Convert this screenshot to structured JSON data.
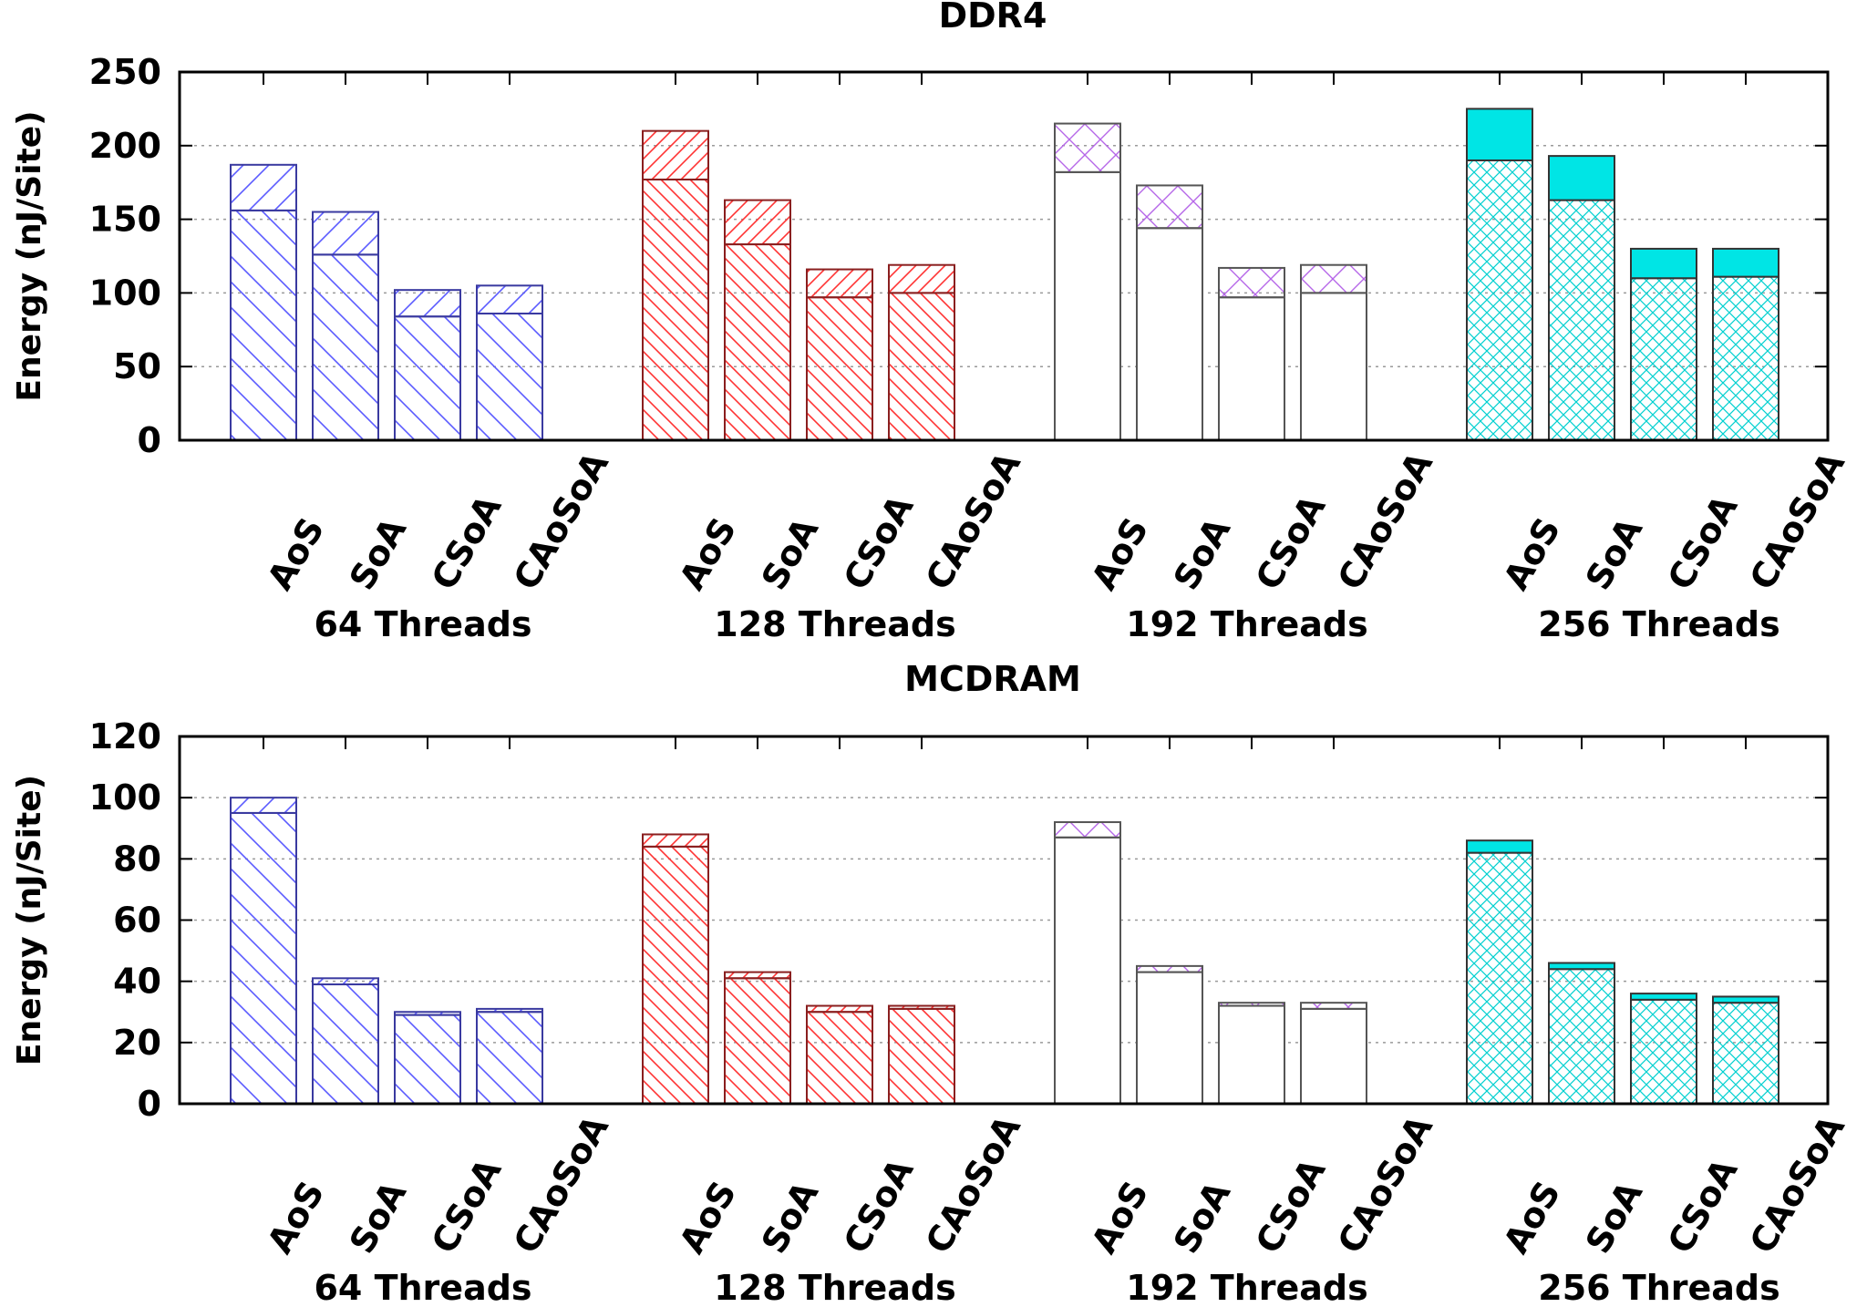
{
  "chart_data": [
    {
      "type": "bar",
      "stacked": true,
      "title": "DDR4",
      "ylabel": "Energy (nJ/Site)",
      "xlabel": "",
      "ylim": [
        0,
        250
      ],
      "yticks": [
        0,
        50,
        100,
        150,
        200,
        250
      ],
      "grid": true,
      "groups": [
        {
          "label": "64 Threads",
          "color": "#5b5bff",
          "pattern": "diag-back",
          "bars": [
            {
              "category": "AoS",
              "base": 156,
              "total": 187
            },
            {
              "category": "SoA",
              "base": 126,
              "total": 155
            },
            {
              "category": "CSoA",
              "base": 84,
              "total": 102
            },
            {
              "category": "CAoSoA",
              "base": 86,
              "total": 105
            }
          ]
        },
        {
          "label": "128 Threads",
          "color": "#ff3333",
          "pattern": "diag-dense",
          "bars": [
            {
              "category": "AoS",
              "base": 177,
              "total": 210
            },
            {
              "category": "SoA",
              "base": 133,
              "total": 163
            },
            {
              "category": "CSoA",
              "base": 97,
              "total": 116
            },
            {
              "category": "CAoSoA",
              "base": 100,
              "total": 119
            }
          ]
        },
        {
          "label": "192 Threads",
          "color": "#b566e8",
          "pattern": "cross",
          "bars": [
            {
              "category": "AoS",
              "base": 182,
              "total": 215
            },
            {
              "category": "SoA",
              "base": 144,
              "total": 173
            },
            {
              "category": "CSoA",
              "base": 97,
              "total": 117
            },
            {
              "category": "CAoSoA",
              "base": 100,
              "total": 119
            }
          ]
        },
        {
          "label": "256 Threads",
          "color": "#00e5e5",
          "pattern": "solid",
          "bars": [
            {
              "category": "AoS",
              "base": 190,
              "total": 225
            },
            {
              "category": "SoA",
              "base": 163,
              "total": 193
            },
            {
              "category": "CSoA",
              "base": 110,
              "total": 130
            },
            {
              "category": "CAoSoA",
              "base": 111,
              "total": 130
            }
          ]
        }
      ]
    },
    {
      "type": "bar",
      "stacked": true,
      "title": "MCDRAM",
      "ylabel": "Energy (nJ/Site)",
      "xlabel": "",
      "ylim": [
        0,
        120
      ],
      "yticks": [
        0,
        20,
        40,
        60,
        80,
        100,
        120
      ],
      "grid": true,
      "groups": [
        {
          "label": "64 Threads",
          "color": "#5b5bff",
          "pattern": "diag-back",
          "bars": [
            {
              "category": "AoS",
              "base": 95,
              "total": 100
            },
            {
              "category": "SoA",
              "base": 39,
              "total": 41
            },
            {
              "category": "CSoA",
              "base": 29,
              "total": 30
            },
            {
              "category": "CAoSoA",
              "base": 30,
              "total": 31
            }
          ]
        },
        {
          "label": "128 Threads",
          "color": "#ff3333",
          "pattern": "diag-dense",
          "bars": [
            {
              "category": "AoS",
              "base": 84,
              "total": 88
            },
            {
              "category": "SoA",
              "base": 41,
              "total": 43
            },
            {
              "category": "CSoA",
              "base": 30,
              "total": 32
            },
            {
              "category": "CAoSoA",
              "base": 31,
              "total": 32
            }
          ]
        },
        {
          "label": "192 Threads",
          "color": "#b566e8",
          "pattern": "cross",
          "bars": [
            {
              "category": "AoS",
              "base": 87,
              "total": 92
            },
            {
              "category": "SoA",
              "base": 43,
              "total": 45
            },
            {
              "category": "CSoA",
              "base": 32,
              "total": 33
            },
            {
              "category": "CAoSoA",
              "base": 31,
              "total": 33
            }
          ]
        },
        {
          "label": "256 Threads",
          "color": "#00e5e5",
          "pattern": "solid",
          "bars": [
            {
              "category": "AoS",
              "base": 82,
              "total": 86
            },
            {
              "category": "SoA",
              "base": 44,
              "total": 46
            },
            {
              "category": "CSoA",
              "base": 34,
              "total": 36
            },
            {
              "category": "CAoSoA",
              "base": 33,
              "total": 35
            }
          ]
        }
      ]
    }
  ]
}
